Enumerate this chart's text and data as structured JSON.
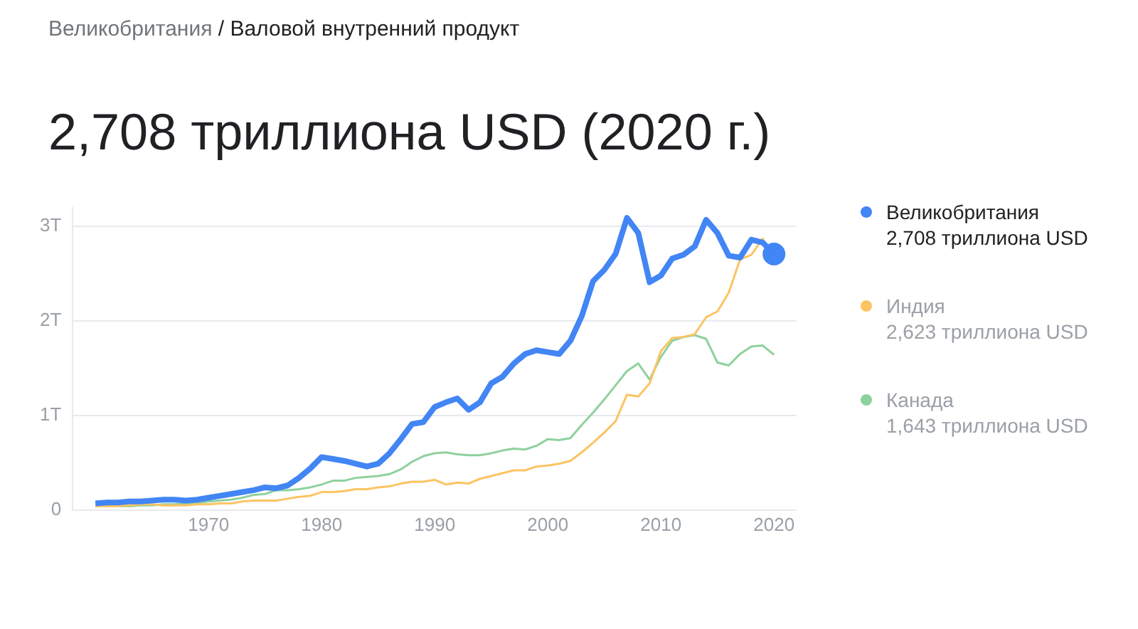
{
  "chart_data": {
    "type": "line",
    "subtitle": "Великобритания / Валовой внутренний продукт",
    "title": "2,708 триллиона USD (2020 г.)",
    "x": [
      1960,
      1961,
      1962,
      1963,
      1964,
      1965,
      1966,
      1967,
      1968,
      1969,
      1970,
      1971,
      1972,
      1973,
      1974,
      1975,
      1976,
      1977,
      1978,
      1979,
      1980,
      1981,
      1982,
      1983,
      1984,
      1985,
      1986,
      1987,
      1988,
      1989,
      1990,
      1991,
      1992,
      1993,
      1994,
      1995,
      1996,
      1997,
      1998,
      1999,
      2000,
      2001,
      2002,
      2003,
      2004,
      2005,
      2006,
      2007,
      2008,
      2009,
      2010,
      2011,
      2012,
      2013,
      2014,
      2015,
      2016,
      2017,
      2018,
      2019,
      2020
    ],
    "series": [
      {
        "name": "Великобритания",
        "color": "#4285f4",
        "values": [
          0.07,
          0.08,
          0.08,
          0.09,
          0.09,
          0.1,
          0.11,
          0.11,
          0.1,
          0.11,
          0.13,
          0.15,
          0.17,
          0.19,
          0.21,
          0.24,
          0.23,
          0.26,
          0.34,
          0.44,
          0.56,
          0.54,
          0.52,
          0.49,
          0.46,
          0.49,
          0.6,
          0.75,
          0.91,
          0.93,
          1.09,
          1.14,
          1.18,
          1.06,
          1.14,
          1.34,
          1.41,
          1.55,
          1.65,
          1.69,
          1.67,
          1.65,
          1.79,
          2.05,
          2.42,
          2.54,
          2.71,
          3.09,
          2.93,
          2.41,
          2.48,
          2.66,
          2.7,
          2.79,
          3.07,
          2.93,
          2.69,
          2.67,
          2.86,
          2.83,
          2.708
        ]
      },
      {
        "name": "Индия",
        "color": "#fbc463",
        "values": [
          0.04,
          0.04,
          0.04,
          0.05,
          0.06,
          0.06,
          0.05,
          0.05,
          0.05,
          0.06,
          0.06,
          0.07,
          0.07,
          0.09,
          0.1,
          0.1,
          0.1,
          0.12,
          0.14,
          0.15,
          0.19,
          0.19,
          0.2,
          0.22,
          0.22,
          0.24,
          0.25,
          0.28,
          0.3,
          0.3,
          0.32,
          0.27,
          0.29,
          0.28,
          0.33,
          0.36,
          0.39,
          0.42,
          0.42,
          0.46,
          0.47,
          0.49,
          0.52,
          0.61,
          0.71,
          0.82,
          0.94,
          1.22,
          1.2,
          1.34,
          1.68,
          1.82,
          1.83,
          1.86,
          2.04,
          2.1,
          2.3,
          2.65,
          2.7,
          2.87,
          2.623
        ]
      },
      {
        "name": "Канада",
        "color": "#8fd19e",
        "values": [
          0.04,
          0.04,
          0.04,
          0.04,
          0.05,
          0.05,
          0.06,
          0.06,
          0.07,
          0.07,
          0.09,
          0.1,
          0.11,
          0.13,
          0.16,
          0.17,
          0.21,
          0.21,
          0.22,
          0.24,
          0.27,
          0.31,
          0.31,
          0.34,
          0.35,
          0.36,
          0.38,
          0.43,
          0.51,
          0.57,
          0.6,
          0.61,
          0.59,
          0.58,
          0.58,
          0.6,
          0.63,
          0.65,
          0.64,
          0.68,
          0.75,
          0.74,
          0.76,
          0.9,
          1.03,
          1.17,
          1.32,
          1.47,
          1.55,
          1.38,
          1.62,
          1.79,
          1.83,
          1.85,
          1.81,
          1.56,
          1.53,
          1.65,
          1.73,
          1.74,
          1.643
        ]
      }
    ],
    "annotations": [
      "2,708 триллиона USD",
      "2,623 триллиона USD",
      "1,643 триллиона USD"
    ],
    "xlim": [
      1958,
      2022
    ],
    "xticks": [
      1970,
      1980,
      1990,
      2000,
      2010,
      2020
    ],
    "ylim": [
      0,
      3.2
    ],
    "yticks": [
      {
        "value": 0,
        "label": "0"
      },
      {
        "value": 1,
        "label": "1T"
      },
      {
        "value": 2,
        "label": "2T"
      },
      {
        "value": 3,
        "label": "3T"
      }
    ],
    "grid": "y",
    "legend": "right"
  }
}
